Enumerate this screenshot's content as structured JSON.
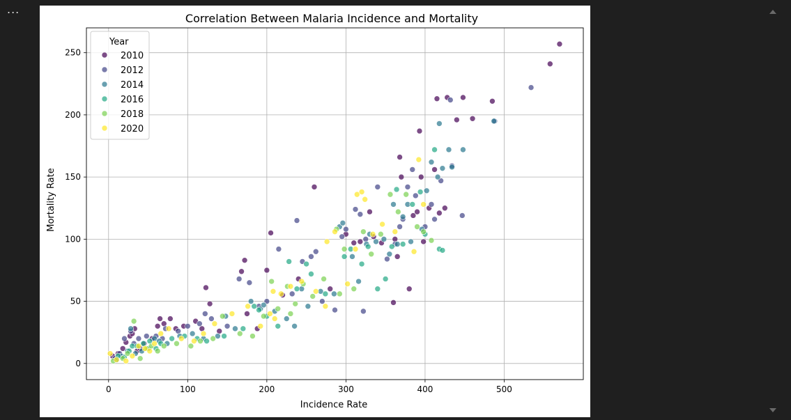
{
  "menu": {
    "dots": "..."
  },
  "chart_data": {
    "type": "scatter",
    "title": "Correlation Between Malaria Incidence and Mortality",
    "xlabel": "Incidence Rate",
    "ylabel": "Mortality Rate",
    "xlim": [
      -28,
      600
    ],
    "ylim": [
      -13,
      270
    ],
    "xticks": [
      0,
      100,
      200,
      300,
      400,
      500
    ],
    "yticks": [
      0,
      50,
      100,
      150,
      200,
      250
    ],
    "grid": true,
    "legend": {
      "title": "Year",
      "position": "top-left"
    },
    "marker_alpha": 0.7,
    "series": [
      {
        "name": "2010",
        "color": "#440154",
        "points": [
          [
            5,
            6
          ],
          [
            12,
            8
          ],
          [
            18,
            12
          ],
          [
            22,
            17
          ],
          [
            27,
            22
          ],
          [
            30,
            24
          ],
          [
            33,
            28
          ],
          [
            36,
            10
          ],
          [
            40,
            12
          ],
          [
            45,
            16
          ],
          [
            55,
            20
          ],
          [
            62,
            30
          ],
          [
            65,
            36
          ],
          [
            70,
            32
          ],
          [
            78,
            36
          ],
          [
            85,
            28
          ],
          [
            95,
            30
          ],
          [
            110,
            34
          ],
          [
            118,
            28
          ],
          [
            123,
            61
          ],
          [
            128,
            48
          ],
          [
            140,
            26
          ],
          [
            168,
            74
          ],
          [
            172,
            83
          ],
          [
            175,
            40
          ],
          [
            188,
            28
          ],
          [
            200,
            75
          ],
          [
            205,
            105
          ],
          [
            220,
            55
          ],
          [
            240,
            68
          ],
          [
            260,
            142
          ],
          [
            280,
            60
          ],
          [
            300,
            104
          ],
          [
            310,
            97
          ],
          [
            318,
            98
          ],
          [
            330,
            122
          ],
          [
            335,
            102
          ],
          [
            345,
            97
          ],
          [
            360,
            49
          ],
          [
            362,
            100
          ],
          [
            365,
            86
          ],
          [
            368,
            166
          ],
          [
            370,
            150
          ],
          [
            380,
            60
          ],
          [
            385,
            119
          ],
          [
            390,
            122
          ],
          [
            393,
            187
          ],
          [
            395,
            150
          ],
          [
            398,
            98
          ],
          [
            405,
            125
          ],
          [
            412,
            156
          ],
          [
            415,
            213
          ],
          [
            418,
            121
          ],
          [
            425,
            125
          ],
          [
            428,
            214
          ],
          [
            440,
            196
          ],
          [
            448,
            214
          ],
          [
            460,
            197
          ],
          [
            485,
            211
          ],
          [
            558,
            241
          ],
          [
            570,
            257
          ]
        ]
      },
      {
        "name": "2012",
        "color": "#414487",
        "points": [
          [
            8,
            4
          ],
          [
            14,
            8
          ],
          [
            20,
            20
          ],
          [
            28,
            26
          ],
          [
            32,
            16
          ],
          [
            38,
            20
          ],
          [
            48,
            22
          ],
          [
            60,
            22
          ],
          [
            68,
            20
          ],
          [
            72,
            28
          ],
          [
            88,
            26
          ],
          [
            100,
            30
          ],
          [
            115,
            32
          ],
          [
            122,
            40
          ],
          [
            130,
            36
          ],
          [
            150,
            30
          ],
          [
            165,
            68
          ],
          [
            178,
            65
          ],
          [
            190,
            46
          ],
          [
            200,
            50
          ],
          [
            215,
            92
          ],
          [
            232,
            56
          ],
          [
            238,
            115
          ],
          [
            245,
            82
          ],
          [
            256,
            86
          ],
          [
            262,
            90
          ],
          [
            270,
            50
          ],
          [
            286,
            43
          ],
          [
            295,
            102
          ],
          [
            300,
            108
          ],
          [
            312,
            124
          ],
          [
            318,
            120
          ],
          [
            322,
            42
          ],
          [
            325,
            100
          ],
          [
            340,
            142
          ],
          [
            352,
            84
          ],
          [
            362,
            96
          ],
          [
            368,
            110
          ],
          [
            372,
            116
          ],
          [
            378,
            142
          ],
          [
            384,
            156
          ],
          [
            388,
            135
          ],
          [
            400,
            110
          ],
          [
            408,
            128
          ],
          [
            412,
            116
          ],
          [
            420,
            147
          ],
          [
            432,
            212
          ],
          [
            434,
            159
          ],
          [
            447,
            119
          ],
          [
            534,
            222
          ],
          [
            488,
            195
          ]
        ]
      },
      {
        "name": "2014",
        "color": "#2a788e",
        "points": [
          [
            10,
            3
          ],
          [
            16,
            6
          ],
          [
            24,
            10
          ],
          [
            28,
            28
          ],
          [
            34,
            8
          ],
          [
            42,
            10
          ],
          [
            50,
            12
          ],
          [
            58,
            20
          ],
          [
            64,
            18
          ],
          [
            74,
            16
          ],
          [
            90,
            22
          ],
          [
            106,
            24
          ],
          [
            120,
            20
          ],
          [
            138,
            22
          ],
          [
            148,
            38
          ],
          [
            160,
            28
          ],
          [
            180,
            50
          ],
          [
            192,
            44
          ],
          [
            196,
            47
          ],
          [
            210,
            42
          ],
          [
            225,
            36
          ],
          [
            235,
            30
          ],
          [
            244,
            60
          ],
          [
            252,
            46
          ],
          [
            268,
            58
          ],
          [
            285,
            56
          ],
          [
            292,
            110
          ],
          [
            296,
            113
          ],
          [
            308,
            86
          ],
          [
            316,
            66
          ],
          [
            326,
            96
          ],
          [
            330,
            104
          ],
          [
            338,
            98
          ],
          [
            348,
            100
          ],
          [
            355,
            88
          ],
          [
            360,
            128
          ],
          [
            365,
            96
          ],
          [
            372,
            118
          ],
          [
            378,
            128
          ],
          [
            382,
            98
          ],
          [
            396,
            108
          ],
          [
            402,
            139
          ],
          [
            408,
            162
          ],
          [
            416,
            150
          ],
          [
            422,
            157
          ],
          [
            430,
            172
          ],
          [
            434,
            158
          ],
          [
            448,
            172
          ],
          [
            487,
            195
          ],
          [
            418,
            193
          ]
        ]
      },
      {
        "name": "2016",
        "color": "#22a884",
        "points": [
          [
            12,
            6
          ],
          [
            20,
            5
          ],
          [
            26,
            10
          ],
          [
            30,
            14
          ],
          [
            36,
            14
          ],
          [
            44,
            16
          ],
          [
            52,
            18
          ],
          [
            60,
            12
          ],
          [
            66,
            16
          ],
          [
            80,
            20
          ],
          [
            96,
            22
          ],
          [
            112,
            20
          ],
          [
            124,
            18
          ],
          [
            146,
            22
          ],
          [
            170,
            28
          ],
          [
            184,
            46
          ],
          [
            190,
            43
          ],
          [
            200,
            38
          ],
          [
            214,
            30
          ],
          [
            228,
            82
          ],
          [
            238,
            60
          ],
          [
            250,
            80
          ],
          [
            256,
            72
          ],
          [
            274,
            56
          ],
          [
            298,
            86
          ],
          [
            306,
            92
          ],
          [
            320,
            80
          ],
          [
            328,
            94
          ],
          [
            340,
            60
          ],
          [
            350,
            68
          ],
          [
            358,
            94
          ],
          [
            364,
            140
          ],
          [
            372,
            96
          ],
          [
            384,
            128
          ],
          [
            394,
            138
          ],
          [
            400,
            104
          ],
          [
            418,
            92
          ],
          [
            422,
            91
          ],
          [
            412,
            172
          ]
        ]
      },
      {
        "name": "2018",
        "color": "#7ad151",
        "points": [
          [
            6,
            2
          ],
          [
            18,
            4
          ],
          [
            24,
            8
          ],
          [
            32,
            34
          ],
          [
            40,
            4
          ],
          [
            48,
            12
          ],
          [
            54,
            14
          ],
          [
            62,
            10
          ],
          [
            70,
            14
          ],
          [
            86,
            16
          ],
          [
            104,
            14
          ],
          [
            116,
            18
          ],
          [
            132,
            20
          ],
          [
            144,
            38
          ],
          [
            166,
            24
          ],
          [
            182,
            22
          ],
          [
            196,
            38
          ],
          [
            206,
            66
          ],
          [
            214,
            44
          ],
          [
            226,
            62
          ],
          [
            236,
            48
          ],
          [
            246,
            64
          ],
          [
            258,
            54
          ],
          [
            272,
            68
          ],
          [
            288,
            108
          ],
          [
            298,
            92
          ],
          [
            310,
            60
          ],
          [
            322,
            106
          ],
          [
            332,
            88
          ],
          [
            344,
            104
          ],
          [
            356,
            136
          ],
          [
            366,
            122
          ],
          [
            376,
            136
          ],
          [
            390,
            110
          ],
          [
            398,
            106
          ],
          [
            408,
            99
          ],
          [
            292,
            56
          ],
          [
            230,
            40
          ]
        ]
      },
      {
        "name": "2020",
        "color": "#fde725",
        "points": [
          [
            2,
            8
          ],
          [
            10,
            3
          ],
          [
            22,
            2
          ],
          [
            30,
            6
          ],
          [
            38,
            14
          ],
          [
            46,
            12
          ],
          [
            52,
            10
          ],
          [
            58,
            16
          ],
          [
            66,
            24
          ],
          [
            76,
            28
          ],
          [
            92,
            20
          ],
          [
            108,
            18
          ],
          [
            120,
            24
          ],
          [
            134,
            32
          ],
          [
            156,
            40
          ],
          [
            176,
            46
          ],
          [
            192,
            30
          ],
          [
            204,
            40
          ],
          [
            210,
            36
          ],
          [
            218,
            56
          ],
          [
            230,
            62
          ],
          [
            244,
            66
          ],
          [
            262,
            58
          ],
          [
            276,
            98
          ],
          [
            286,
            106
          ],
          [
            302,
            64
          ],
          [
            314,
            136
          ],
          [
            320,
            138
          ],
          [
            324,
            132
          ],
          [
            334,
            104
          ],
          [
            346,
            112
          ],
          [
            362,
            106
          ],
          [
            386,
            90
          ],
          [
            392,
            164
          ],
          [
            398,
            128
          ],
          [
            274,
            46
          ],
          [
            208,
            58
          ],
          [
            312,
            92
          ]
        ]
      }
    ]
  }
}
